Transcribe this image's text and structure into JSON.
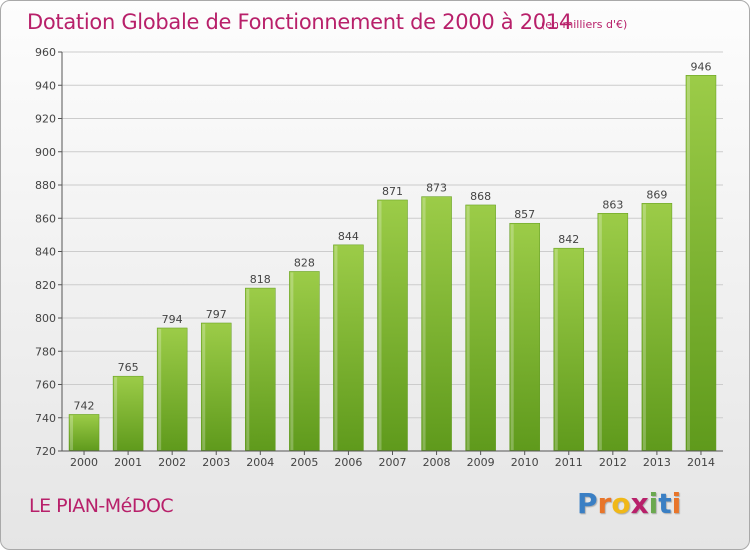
{
  "header": {
    "title": "Dotation Globale de Fonctionnement de 2000 à 2014",
    "unit": "(en milliers d'€)"
  },
  "footer": {
    "commune": "LE PIAN-MéDOC",
    "brand_letters": [
      "P",
      "r",
      "o",
      "x",
      "i",
      "t",
      "i"
    ],
    "brand_colors": [
      "#3a7fc4",
      "#e8752a",
      "#f0b818",
      "#b8206a",
      "#6aa84f",
      "#3a7fc4",
      "#e8752a"
    ]
  },
  "chart_data": {
    "type": "bar",
    "categories": [
      "2000",
      "2001",
      "2002",
      "2003",
      "2004",
      "2005",
      "2006",
      "2007",
      "2008",
      "2009",
      "2010",
      "2011",
      "2012",
      "2013",
      "2014"
    ],
    "values": [
      742,
      765,
      794,
      797,
      818,
      828,
      844,
      871,
      873,
      868,
      857,
      842,
      863,
      869,
      946
    ],
    "data_labels": [
      "742",
      "765",
      "794",
      "797",
      "818",
      "828",
      "844",
      "871",
      "873",
      "868",
      "857",
      "842",
      "863",
      "869",
      "946"
    ],
    "ylim": [
      720,
      960
    ],
    "yticks": [
      720,
      740,
      760,
      780,
      800,
      820,
      840,
      860,
      880,
      900,
      920,
      940,
      960
    ],
    "ytick_labels": [
      "720",
      "740",
      "760",
      "780",
      "800",
      "820",
      "840",
      "860",
      "880",
      "900",
      "920",
      "940",
      "960"
    ],
    "grid": true,
    "bar_color": "#7ab82e",
    "bar_color_light": "#9ccc48",
    "bar_color_dark": "#5f9a1c"
  }
}
